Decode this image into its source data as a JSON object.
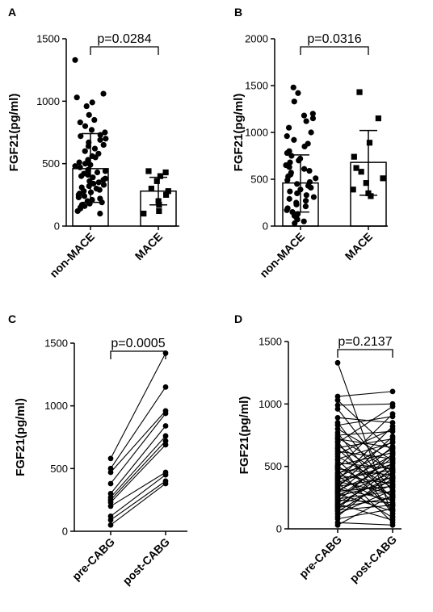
{
  "chart_data": [
    {
      "panel": "A",
      "type": "scatter",
      "ylabel": "FGF21(pg/ml)",
      "ylim": [
        0,
        1500
      ],
      "yticks": [
        0,
        500,
        1000,
        1500
      ],
      "categories": [
        "non-MACE",
        "MACE"
      ],
      "bars": [
        460,
        280
      ],
      "errors": [
        [
          190,
          740
        ],
        [
          170,
          390
        ]
      ],
      "annotation": "p=0.0284",
      "points": [
        [
          1330,
          1060,
          1030,
          990,
          960,
          890,
          850,
          830,
          800,
          770,
          750,
          730,
          720,
          700,
          690,
          670,
          650,
          640,
          620,
          600,
          580,
          560,
          550,
          530,
          510,
          500,
          490,
          480,
          470,
          450,
          440,
          430,
          420,
          410,
          400,
          390,
          380,
          370,
          360,
          350,
          340,
          330,
          320,
          310,
          300,
          290,
          280,
          270,
          260,
          250,
          240,
          230,
          220,
          210,
          200,
          190,
          180,
          170,
          160,
          150,
          140,
          120,
          100
        ],
        [
          440,
          430,
          400,
          360,
          300,
          280,
          250,
          200,
          170,
          120,
          100
        ]
      ]
    },
    {
      "panel": "B",
      "type": "scatter",
      "ylabel": "FGF21(pg/ml)",
      "ylim": [
        0,
        2000
      ],
      "yticks": [
        0,
        500,
        1000,
        1500,
        2000
      ],
      "categories": [
        "non-MACE",
        "MACE"
      ],
      "bars": [
        460,
        680
      ],
      "errors": [
        [
          150,
          760
        ],
        [
          330,
          1020
        ]
      ],
      "annotation": "p=0.0316",
      "points": [
        [
          1480,
          1420,
          1330,
          1200,
          1180,
          1150,
          1120,
          1050,
          1000,
          960,
          920,
          880,
          850,
          800,
          780,
          750,
          720,
          700,
          680,
          650,
          630,
          610,
          590,
          570,
          550,
          530,
          510,
          490,
          470,
          450,
          430,
          410,
          390,
          370,
          350,
          330,
          310,
          290,
          270,
          250,
          230,
          210,
          190,
          170,
          150,
          130,
          110,
          90,
          70,
          50,
          30
        ],
        [
          1430,
          1150,
          890,
          740,
          620,
          580,
          510,
          460,
          390,
          350,
          320
        ]
      ]
    },
    {
      "panel": "C",
      "type": "line",
      "ylabel": "FGF21(pg/ml)",
      "ylim": [
        0,
        1500
      ],
      "yticks": [
        0,
        500,
        1000,
        1500
      ],
      "categories": [
        "pre-CABG",
        "post-CABG"
      ],
      "annotation": "p=0.0005",
      "pairs": [
        [
          580,
          1420
        ],
        [
          500,
          1150
        ],
        [
          470,
          960
        ],
        [
          380,
          940
        ],
        [
          300,
          840
        ],
        [
          270,
          760
        ],
        [
          250,
          720
        ],
        [
          230,
          690
        ],
        [
          200,
          470
        ],
        [
          120,
          450
        ],
        [
          90,
          400
        ],
        [
          50,
          380
        ]
      ]
    },
    {
      "panel": "D",
      "type": "line",
      "ylabel": "FGF21(pg/ml)",
      "ylim": [
        0,
        1500
      ],
      "yticks": [
        0,
        500,
        1000,
        1500
      ],
      "categories": [
        "pre-CABG",
        "post-CABG"
      ],
      "annotation": "p=0.2137",
      "pairs": [
        [
          1330,
          100
        ],
        [
          1060,
          1100
        ],
        [
          1030,
          620
        ],
        [
          990,
          1000
        ],
        [
          960,
          400
        ],
        [
          890,
          850
        ],
        [
          850,
          300
        ],
        [
          830,
          900
        ],
        [
          800,
          550
        ],
        [
          770,
          200
        ],
        [
          750,
          780
        ],
        [
          730,
          460
        ],
        [
          720,
          650
        ],
        [
          700,
          120
        ],
        [
          690,
          980
        ],
        [
          670,
          380
        ],
        [
          650,
          720
        ],
        [
          640,
          250
        ],
        [
          620,
          560
        ],
        [
          600,
          800
        ],
        [
          580,
          330
        ],
        [
          560,
          690
        ],
        [
          550,
          150
        ],
        [
          530,
          480
        ],
        [
          510,
          610
        ],
        [
          500,
          260
        ],
        [
          490,
          920
        ],
        [
          480,
          430
        ],
        [
          470,
          50
        ],
        [
          450,
          540
        ],
        [
          440,
          700
        ],
        [
          430,
          360
        ],
        [
          420,
          180
        ],
        [
          410,
          640
        ],
        [
          400,
          470
        ],
        [
          390,
          820
        ],
        [
          380,
          280
        ],
        [
          370,
          520
        ],
        [
          360,
          90
        ],
        [
          350,
          590
        ],
        [
          340,
          410
        ],
        [
          330,
          740
        ],
        [
          320,
          230
        ],
        [
          310,
          500
        ],
        [
          300,
          340
        ],
        [
          290,
          660
        ],
        [
          280,
          140
        ],
        [
          270,
          450
        ],
        [
          260,
          380
        ],
        [
          250,
          570
        ],
        [
          240,
          300
        ],
        [
          230,
          210
        ],
        [
          220,
          600
        ],
        [
          210,
          420
        ],
        [
          200,
          70
        ],
        [
          190,
          350
        ],
        [
          180,
          480
        ],
        [
          170,
          250
        ],
        [
          160,
          530
        ],
        [
          150,
          190
        ],
        [
          140,
          400
        ],
        [
          120,
          310
        ],
        [
          100,
          450
        ],
        [
          80,
          160
        ],
        [
          50,
          30
        ],
        [
          30,
          270
        ]
      ]
    }
  ]
}
